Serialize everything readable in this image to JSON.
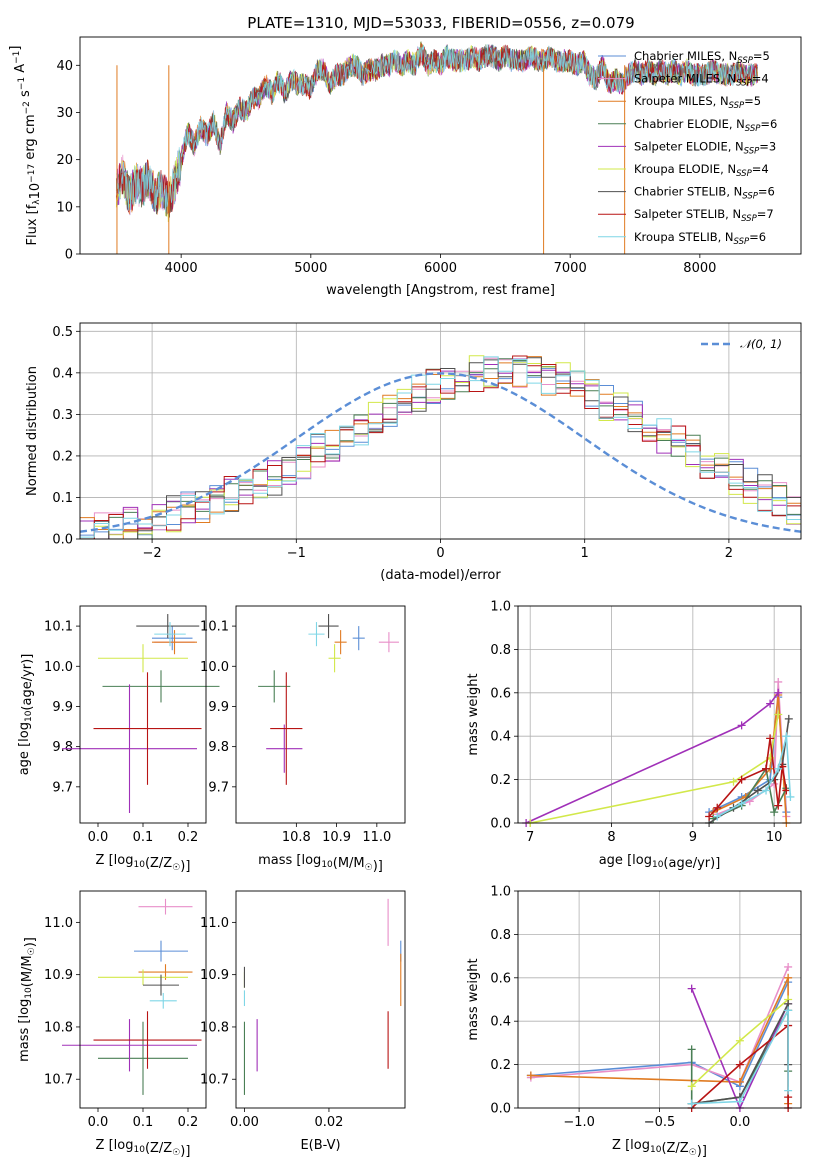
{
  "figure": {
    "title": "PLATE=1310, MJD=53033, FIBERID=0556, z=0.079"
  },
  "models": [
    {
      "key": "chab_miles",
      "name": "Chabrier MILES",
      "nssp": "5",
      "color": "#5b8ed6"
    },
    {
      "key": "salp_miles",
      "name": "Salpeter MILES",
      "nssp": "4",
      "color": "#e88fc9"
    },
    {
      "key": "krou_miles",
      "name": "Kroupa MILES",
      "nssp": "5",
      "color": "#e07b22"
    },
    {
      "key": "chab_elodie",
      "name": "Chabrier ELODIE",
      "nssp": "6",
      "color": "#4a7f55"
    },
    {
      "key": "salp_elodie",
      "name": "Salpeter ELODIE",
      "nssp": "3",
      "color": "#a030b8"
    },
    {
      "key": "krou_elodie",
      "name": "Kroupa ELODIE",
      "nssp": "4",
      "color": "#d2e84a"
    },
    {
      "key": "chab_stelib",
      "name": "Chabrier STELIB",
      "nssp": "6",
      "color": "#505050"
    },
    {
      "key": "salp_stelib",
      "name": "Salpeter STELIB",
      "nssp": "7",
      "color": "#b81414"
    },
    {
      "key": "krou_stelib",
      "name": "Kroupa STELIB",
      "nssp": "6",
      "color": "#7fd6e6"
    }
  ],
  "chart_data": [
    {
      "id": "spectrum",
      "type": "line",
      "xlabel": "wavelength [Angstrom, rest frame]",
      "ylabel": "Flux [f_λ10^-17 erg cm^-2 s^-1 A^-1]",
      "xlim": [
        3220,
        8780
      ],
      "ylim": [
        0,
        46
      ],
      "xticks": [
        4000,
        5000,
        6000,
        7000,
        8000
      ],
      "yticks": [
        0,
        10,
        20,
        30,
        40
      ],
      "legend": "upper right",
      "x": [
        3500,
        3550,
        3600,
        3650,
        3700,
        3750,
        3800,
        3850,
        3900,
        3950,
        4000,
        4050,
        4100,
        4150,
        4200,
        4250,
        4300,
        4350,
        4400,
        4450,
        4500,
        4550,
        4600,
        4650,
        4700,
        4750,
        4800,
        4850,
        4900,
        4950,
        5000,
        5050,
        5100,
        5150,
        5200,
        5250,
        5300,
        5350,
        5400,
        5450,
        5500,
        5550,
        5600,
        5650,
        5700,
        5750,
        5800,
        5850,
        5900,
        5950,
        6000,
        6050,
        6100,
        6150,
        6200,
        6250,
        6300,
        6350,
        6400,
        6450,
        6500,
        6550,
        6600,
        6650,
        6700,
        6750,
        6800,
        6850,
        6900,
        6950,
        7000,
        7050,
        7100,
        7150,
        7200,
        7250,
        7300,
        7350,
        7400,
        7450,
        7500,
        7550,
        7600,
        7650,
        7700,
        7750,
        7800,
        7850,
        7900,
        7950,
        8000,
        8050,
        8100,
        8150,
        8200,
        8250,
        8300,
        8350,
        8400,
        8450
      ],
      "y": [
        13,
        17,
        12,
        15,
        14,
        16,
        12,
        14,
        11,
        15,
        20,
        26,
        23,
        27,
        25,
        28,
        23,
        30,
        28,
        31,
        30,
        33,
        33,
        36,
        34,
        37,
        34,
        37,
        36,
        36,
        35,
        39,
        39,
        36,
        38,
        38,
        40,
        40,
        38,
        39,
        39,
        40,
        40,
        41,
        40,
        41,
        40,
        43,
        40,
        41,
        40,
        42,
        41,
        41,
        41,
        42,
        41,
        42,
        42,
        41,
        42,
        41,
        41,
        41,
        42,
        41,
        41,
        42,
        41,
        41,
        41,
        40,
        41,
        38,
        37,
        40,
        36,
        37,
        36,
        38,
        39,
        38,
        39,
        38,
        39,
        38,
        39,
        38,
        39,
        38,
        38,
        38,
        39,
        38,
        38,
        38,
        39,
        38,
        38,
        38
      ],
      "notes_dips": [
        [
          3900,
          0
        ],
        [
          6790,
          0
        ],
        [
          7420,
          0
        ],
        [
          3500,
          0
        ]
      ]
    },
    {
      "id": "residuals",
      "type": "bar",
      "xlabel": "(data-model)/error",
      "ylabel": "Normed distribution",
      "xlim": [
        -2.5,
        2.5
      ],
      "ylim": [
        0,
        0.52
      ],
      "xticks": [
        -2,
        -1,
        0,
        1,
        2
      ],
      "yticks": [
        0.0,
        0.1,
        0.2,
        0.3,
        0.4,
        0.5
      ],
      "grid": true,
      "legend": "upper right",
      "normal_label": "𝒩(0, 1)",
      "bin_edges_start": -2.5,
      "bin_width": 0.1,
      "series_base": [
        0.02,
        0.025,
        0.03,
        0.035,
        0.04,
        0.05,
        0.06,
        0.07,
        0.08,
        0.09,
        0.11,
        0.12,
        0.14,
        0.15,
        0.17,
        0.19,
        0.21,
        0.23,
        0.25,
        0.27,
        0.29,
        0.31,
        0.33,
        0.35,
        0.37,
        0.38,
        0.39,
        0.4,
        0.4,
        0.41,
        0.4,
        0.4,
        0.39,
        0.38,
        0.37,
        0.35,
        0.33,
        0.31,
        0.29,
        0.27,
        0.25,
        0.23,
        0.21,
        0.19,
        0.17,
        0.15,
        0.13,
        0.11,
        0.1,
        0.08
      ]
    },
    {
      "id": "age_vs_Z",
      "type": "scatter",
      "xlabel": "Z [log10(Z/Z☉)]",
      "ylabel": "age [log10(age/yr)]",
      "xlim": [
        -0.04,
        0.24
      ],
      "ylim": [
        9.61,
        10.15
      ],
      "xticks": [
        0.0,
        0.1,
        0.2
      ],
      "yticks": [
        9.7,
        9.8,
        9.9,
        10.0,
        10.1
      ],
      "points": [
        {
          "model": "chab_miles",
          "x": 0.165,
          "xerr": 0.045,
          "y": 10.07,
          "yerr": 0.03
        },
        {
          "model": "salp_miles",
          "x": 0.17,
          "xerr": 0.045,
          "y": 10.06,
          "yerr": 0.025
        },
        {
          "model": "krou_miles",
          "x": 0.17,
          "xerr": 0.05,
          "y": 10.06,
          "yerr": 0.03
        },
        {
          "model": "chab_elodie",
          "x": 0.14,
          "xerr": 0.13,
          "y": 9.95,
          "yerr": 0.04
        },
        {
          "model": "salp_elodie",
          "x": 0.07,
          "xerr": 0.15,
          "y": 9.795,
          "yerr": 0.16
        },
        {
          "model": "krou_elodie",
          "x": 0.1,
          "xerr": 0.1,
          "y": 10.02,
          "yerr": 0.035
        },
        {
          "model": "chab_stelib",
          "x": 0.155,
          "xerr": 0.07,
          "y": 10.1,
          "yerr": 0.03
        },
        {
          "model": "salp_stelib",
          "x": 0.11,
          "xerr": 0.12,
          "y": 9.845,
          "yerr": 0.14
        },
        {
          "model": "krou_stelib",
          "x": 0.16,
          "xerr": 0.035,
          "y": 10.08,
          "yerr": 0.03
        }
      ]
    },
    {
      "id": "age_vs_mass",
      "type": "scatter",
      "xlabel": "mass [log10(M/M☉)]",
      "ylabel": "",
      "xlim": [
        10.65,
        11.07
      ],
      "ylim": [
        9.61,
        10.15
      ],
      "xticks": [
        10.8,
        10.9,
        11.0
      ],
      "yticks": [
        9.7,
        9.8,
        9.9,
        10.0,
        10.1
      ],
      "points": [
        {
          "model": "chab_miles",
          "x": 10.955,
          "xerr": 0.015,
          "y": 10.07,
          "yerr": 0.03
        },
        {
          "model": "salp_miles",
          "x": 11.03,
          "xerr": 0.025,
          "y": 10.06,
          "yerr": 0.025
        },
        {
          "model": "krou_miles",
          "x": 10.91,
          "xerr": 0.015,
          "y": 10.06,
          "yerr": 0.03
        },
        {
          "model": "chab_elodie",
          "x": 10.745,
          "xerr": 0.04,
          "y": 9.95,
          "yerr": 0.04
        },
        {
          "model": "salp_elodie",
          "x": 10.77,
          "xerr": 0.045,
          "y": 9.795,
          "yerr": 0.06
        },
        {
          "model": "krou_elodie",
          "x": 10.895,
          "xerr": 0.015,
          "y": 10.02,
          "yerr": 0.035
        },
        {
          "model": "chab_stelib",
          "x": 10.88,
          "xerr": 0.025,
          "y": 10.1,
          "yerr": 0.03
        },
        {
          "model": "salp_stelib",
          "x": 10.775,
          "xerr": 0.04,
          "y": 9.845,
          "yerr": 0.14
        },
        {
          "model": "krou_stelib",
          "x": 10.85,
          "xerr": 0.02,
          "y": 10.08,
          "yerr": 0.03
        }
      ]
    },
    {
      "id": "weight_vs_age",
      "type": "line",
      "xlabel": "age [log10(age/yr)]",
      "ylabel": "mass weight",
      "xlim": [
        6.85,
        10.33
      ],
      "ylim": [
        0,
        1.0
      ],
      "xticks": [
        7,
        8,
        9,
        10
      ],
      "yticks": [
        0.0,
        0.2,
        0.4,
        0.6,
        0.8,
        1.0
      ],
      "grid": true,
      "series": [
        {
          "model": "chab_miles",
          "x": [
            9.2,
            9.6,
            9.95,
            10.05,
            10.15
          ],
          "y": [
            0.05,
            0.12,
            0.2,
            0.58,
            0.05
          ]
        },
        {
          "model": "salp_miles",
          "x": [
            9.3,
            9.7,
            10.0,
            10.05,
            10.15
          ],
          "y": [
            0.04,
            0.1,
            0.18,
            0.65,
            0.03
          ]
        },
        {
          "model": "krou_miles",
          "x": [
            9.25,
            9.65,
            9.95,
            10.05,
            10.15
          ],
          "y": [
            0.05,
            0.12,
            0.25,
            0.59,
            0.0
          ]
        },
        {
          "model": "chab_elodie",
          "x": [
            9.25,
            9.6,
            9.9,
            10.0,
            10.15
          ],
          "y": [
            0.02,
            0.08,
            0.25,
            0.05,
            0.16
          ]
        },
        {
          "model": "salp_elodie",
          "x": [
            6.95,
            9.6,
            9.95,
            10.05
          ],
          "y": [
            0.0,
            0.45,
            0.55,
            0.6
          ]
        },
        {
          "model": "krou_elodie",
          "x": [
            7.0,
            9.5,
            9.95,
            10.05
          ],
          "y": [
            0.0,
            0.19,
            0.3,
            0.5
          ]
        },
        {
          "model": "chab_stelib",
          "x": [
            9.2,
            9.5,
            9.8,
            10.0,
            10.1,
            10.18
          ],
          "y": [
            0.0,
            0.07,
            0.15,
            0.2,
            0.27,
            0.48
          ]
        },
        {
          "model": "salp_stelib",
          "x": [
            9.2,
            9.3,
            9.6,
            9.9,
            9.95,
            10.05,
            10.1,
            10.15
          ],
          "y": [
            0.03,
            0.07,
            0.2,
            0.25,
            0.39,
            0.08,
            0.26,
            0.15
          ]
        },
        {
          "model": "krou_stelib",
          "x": [
            9.3,
            9.6,
            9.9,
            10.05,
            10.15,
            10.2
          ],
          "y": [
            0.03,
            0.09,
            0.15,
            0.25,
            0.4,
            0.12
          ]
        }
      ]
    },
    {
      "id": "mass_vs_Z",
      "type": "scatter",
      "xlabel": "Z [log10(Z/Z☉)]",
      "ylabel": "mass [log10(M/M☉)]",
      "xlim": [
        -0.04,
        0.24
      ],
      "ylim": [
        10.645,
        11.06
      ],
      "xticks": [
        0.0,
        0.1,
        0.2
      ],
      "yticks": [
        10.7,
        10.8,
        10.9,
        11.0
      ],
      "points": [
        {
          "model": "chab_miles",
          "x": 0.14,
          "xerr": 0.06,
          "y": 10.945,
          "yerr": 0.02
        },
        {
          "model": "salp_miles",
          "x": 0.15,
          "xerr": 0.06,
          "y": 11.03,
          "yerr": 0.015
        },
        {
          "model": "krou_miles",
          "x": 0.15,
          "xerr": 0.06,
          "y": 10.905,
          "yerr": 0.015
        },
        {
          "model": "chab_elodie",
          "x": 0.1,
          "xerr": 0.1,
          "y": 10.74,
          "yerr": 0.07
        },
        {
          "model": "salp_elodie",
          "x": 0.07,
          "xerr": 0.15,
          "y": 10.765,
          "yerr": 0.05
        },
        {
          "model": "krou_elodie",
          "x": 0.1,
          "xerr": 0.1,
          "y": 10.895,
          "yerr": 0.015
        },
        {
          "model": "chab_stelib",
          "x": 0.14,
          "xerr": 0.04,
          "y": 10.88,
          "yerr": 0.02
        },
        {
          "model": "salp_stelib",
          "x": 0.11,
          "xerr": 0.12,
          "y": 10.775,
          "yerr": 0.055
        },
        {
          "model": "krou_stelib",
          "x": 0.145,
          "xerr": 0.03,
          "y": 10.85,
          "yerr": 0.015
        }
      ]
    },
    {
      "id": "mass_vs_ebv",
      "type": "scatter",
      "xlabel": "E(B-V)",
      "ylabel": "",
      "xlim": [
        -0.002,
        0.038
      ],
      "ylim": [
        10.645,
        11.06
      ],
      "xticks": [
        0.0,
        0.02
      ],
      "yticks": [
        10.7,
        10.8,
        10.9,
        11.0
      ],
      "points": [
        {
          "model": "chab_miles",
          "x": 0.037,
          "xerr": 0,
          "y": 10.945,
          "yerr": 0.02
        },
        {
          "model": "salp_miles",
          "x": 0.034,
          "xerr": 0,
          "y": 11.0,
          "yerr": 0.045
        },
        {
          "model": "krou_miles",
          "x": 0.037,
          "xerr": 0,
          "y": 10.89,
          "yerr": 0.05
        },
        {
          "model": "chab_elodie",
          "x": 0.0,
          "xerr": 0,
          "y": 10.74,
          "yerr": 0.07
        },
        {
          "model": "salp_elodie",
          "x": 0.003,
          "xerr": 0,
          "y": 10.765,
          "yerr": 0.05
        },
        {
          "model": "krou_elodie",
          "x": 0.0,
          "xerr": 0,
          "y": 10.89,
          "yerr": 0.015
        },
        {
          "model": "chab_stelib",
          "x": 0.0,
          "xerr": 0,
          "y": 10.895,
          "yerr": 0.02
        },
        {
          "model": "salp_stelib",
          "x": 0.034,
          "xerr": 0,
          "y": 10.775,
          "yerr": 0.055
        },
        {
          "model": "krou_stelib",
          "x": 0.0,
          "xerr": 0,
          "y": 10.855,
          "yerr": 0.015
        }
      ]
    },
    {
      "id": "weight_vs_Z",
      "type": "line",
      "xlabel": "Z [log10(Z/Z☉)]",
      "ylabel": "mass weight",
      "xlim": [
        -1.38,
        0.38
      ],
      "ylim": [
        0,
        1.0
      ],
      "xticks": [
        -1.0,
        -0.5,
        0.0
      ],
      "yticks": [
        0.0,
        0.2,
        0.4,
        0.6,
        0.8,
        1.0
      ],
      "grid": true,
      "series": [
        {
          "model": "chab_miles",
          "x": [
            -1.3,
            -0.3,
            0.0,
            0.3
          ],
          "y": [
            0.15,
            0.21,
            0.1,
            0.58
          ]
        },
        {
          "model": "salp_miles",
          "x": [
            -1.3,
            -0.3,
            0.0,
            0.3
          ],
          "y": [
            0.14,
            0.2,
            0.12,
            0.65
          ]
        },
        {
          "model": "krou_miles",
          "x": [
            -1.3,
            0.0,
            0.3,
            0.3
          ],
          "y": [
            0.15,
            0.12,
            0.6,
            0.02
          ]
        },
        {
          "model": "chab_elodie",
          "x": [
            -0.3,
            -0.3,
            0.0,
            0.3,
            0.3
          ],
          "y": [
            0.27,
            0.02,
            0.05,
            0.45,
            0.17
          ]
        },
        {
          "model": "salp_elodie",
          "x": [
            -0.3,
            0.0,
            0.3
          ],
          "y": [
            0.55,
            0.0,
            0.48
          ]
        },
        {
          "model": "krou_elodie",
          "x": [
            -0.3,
            0.0,
            0.3
          ],
          "y": [
            0.1,
            0.31,
            0.5
          ]
        },
        {
          "model": "chab_stelib",
          "x": [
            -0.3,
            0.0,
            0.3,
            0.3
          ],
          "y": [
            0.02,
            0.05,
            0.48,
            0.2
          ]
        },
        {
          "model": "salp_stelib",
          "x": [
            -0.3,
            0.0,
            0.3,
            0.3,
            0.3
          ],
          "y": [
            0.0,
            0.2,
            0.38,
            0.05,
            0.0
          ]
        },
        {
          "model": "krou_stelib",
          "x": [
            -0.3,
            0.0,
            0.3,
            0.3
          ],
          "y": [
            0.02,
            0.03,
            0.45,
            0.08
          ]
        }
      ]
    }
  ]
}
